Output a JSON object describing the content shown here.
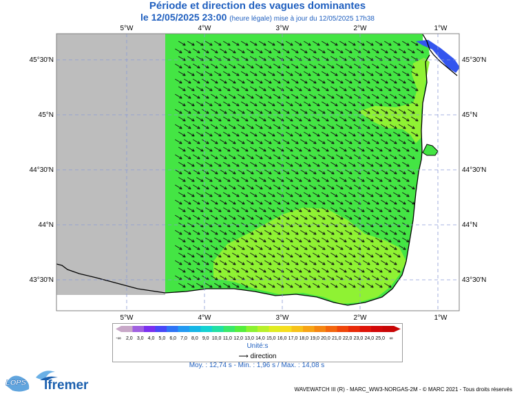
{
  "header": {
    "title": "Période et direction des vagues dominantes",
    "date": "le 12/05/2025 23:00",
    "update_note": "(heure légale) mise à jour du 12/05/2025 17h38"
  },
  "map": {
    "top_axis_labels": [
      "5°W",
      "4°W",
      "3°W",
      "2°W",
      "1°W"
    ],
    "bottom_axis_labels": [
      "5°W",
      "4°W",
      "3°W",
      "2°W",
      "1°W"
    ],
    "right_axis_labels": [
      "45°30'N",
      "45°N",
      "44°30'N",
      "44°N",
      "43°30'N"
    ],
    "left_axis_labels": [
      "45°30'N",
      "45°N",
      "44°30'N",
      "44°N",
      "43°30'N"
    ],
    "colors": {
      "land": "#ffffff",
      "no_data": "#bdbdbd",
      "sea_main": "#44e544",
      "sea_light": "#8ff233",
      "sea_blue": "#3355ee",
      "grid": "#8b9bd6"
    }
  },
  "legend": {
    "ticks": [
      "-∞",
      "2,0",
      "3,0",
      "4,0",
      "5,0",
      "6,0",
      "7,0",
      "8,0",
      "9,0",
      "10,0",
      "11,0",
      "12,0",
      "13,0",
      "14,0",
      "15,0",
      "16,0",
      "17,0",
      "18,0",
      "19,0",
      "20,0",
      "21,0",
      "22,0",
      "23,0",
      "24,0",
      "25,0",
      "∞"
    ],
    "colors": [
      "#c8a8c8",
      "#a060e0",
      "#7a30f0",
      "#4848f8",
      "#2f74f6",
      "#239af2",
      "#16b6e6",
      "#14d2d2",
      "#22e0a4",
      "#3ae86a",
      "#55ee3c",
      "#8cf230",
      "#b8f02a",
      "#e0ec22",
      "#f6de1e",
      "#f7c21a",
      "#f7a416",
      "#f58612",
      "#f3660e",
      "#ef460a",
      "#e82a08",
      "#de1408",
      "#d20808",
      "#c80606"
    ],
    "unit": "Unité:s",
    "direction_label": "direction"
  },
  "stats": "Moy. : 12,74 s   -   Min. : 1,96 s / Max. : 14,08 s",
  "footer": {
    "credit": "WAVEWATCH III (R) - MARC_WW3-NORGAS-2M - © MARC 2021 - Tous droits réservés",
    "logo_lops": "LOPS",
    "logo_ifremer": "Ifremer"
  }
}
